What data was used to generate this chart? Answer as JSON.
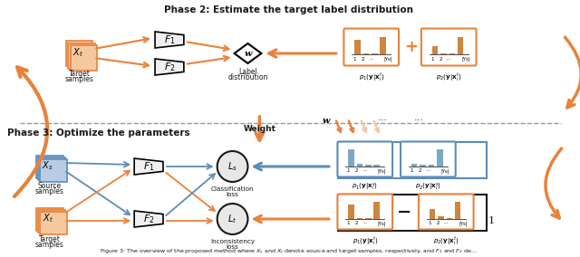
{
  "title": "Phase 2: Estimate the target label distribution",
  "title2": "Phase 3: Optimize the parameters",
  "bg_color": "#ffffff",
  "orange_color": "#E8823A",
  "light_orange": "#F5C9A0",
  "blue_color": "#5B8DB8",
  "light_blue": "#B8CCE4",
  "dark_color": "#1A1A1A",
  "caption": "Figure 3: The overview of the proposed method where X_s and X_t denote source and target samples, respectively, and F_1 and F_2 de..."
}
